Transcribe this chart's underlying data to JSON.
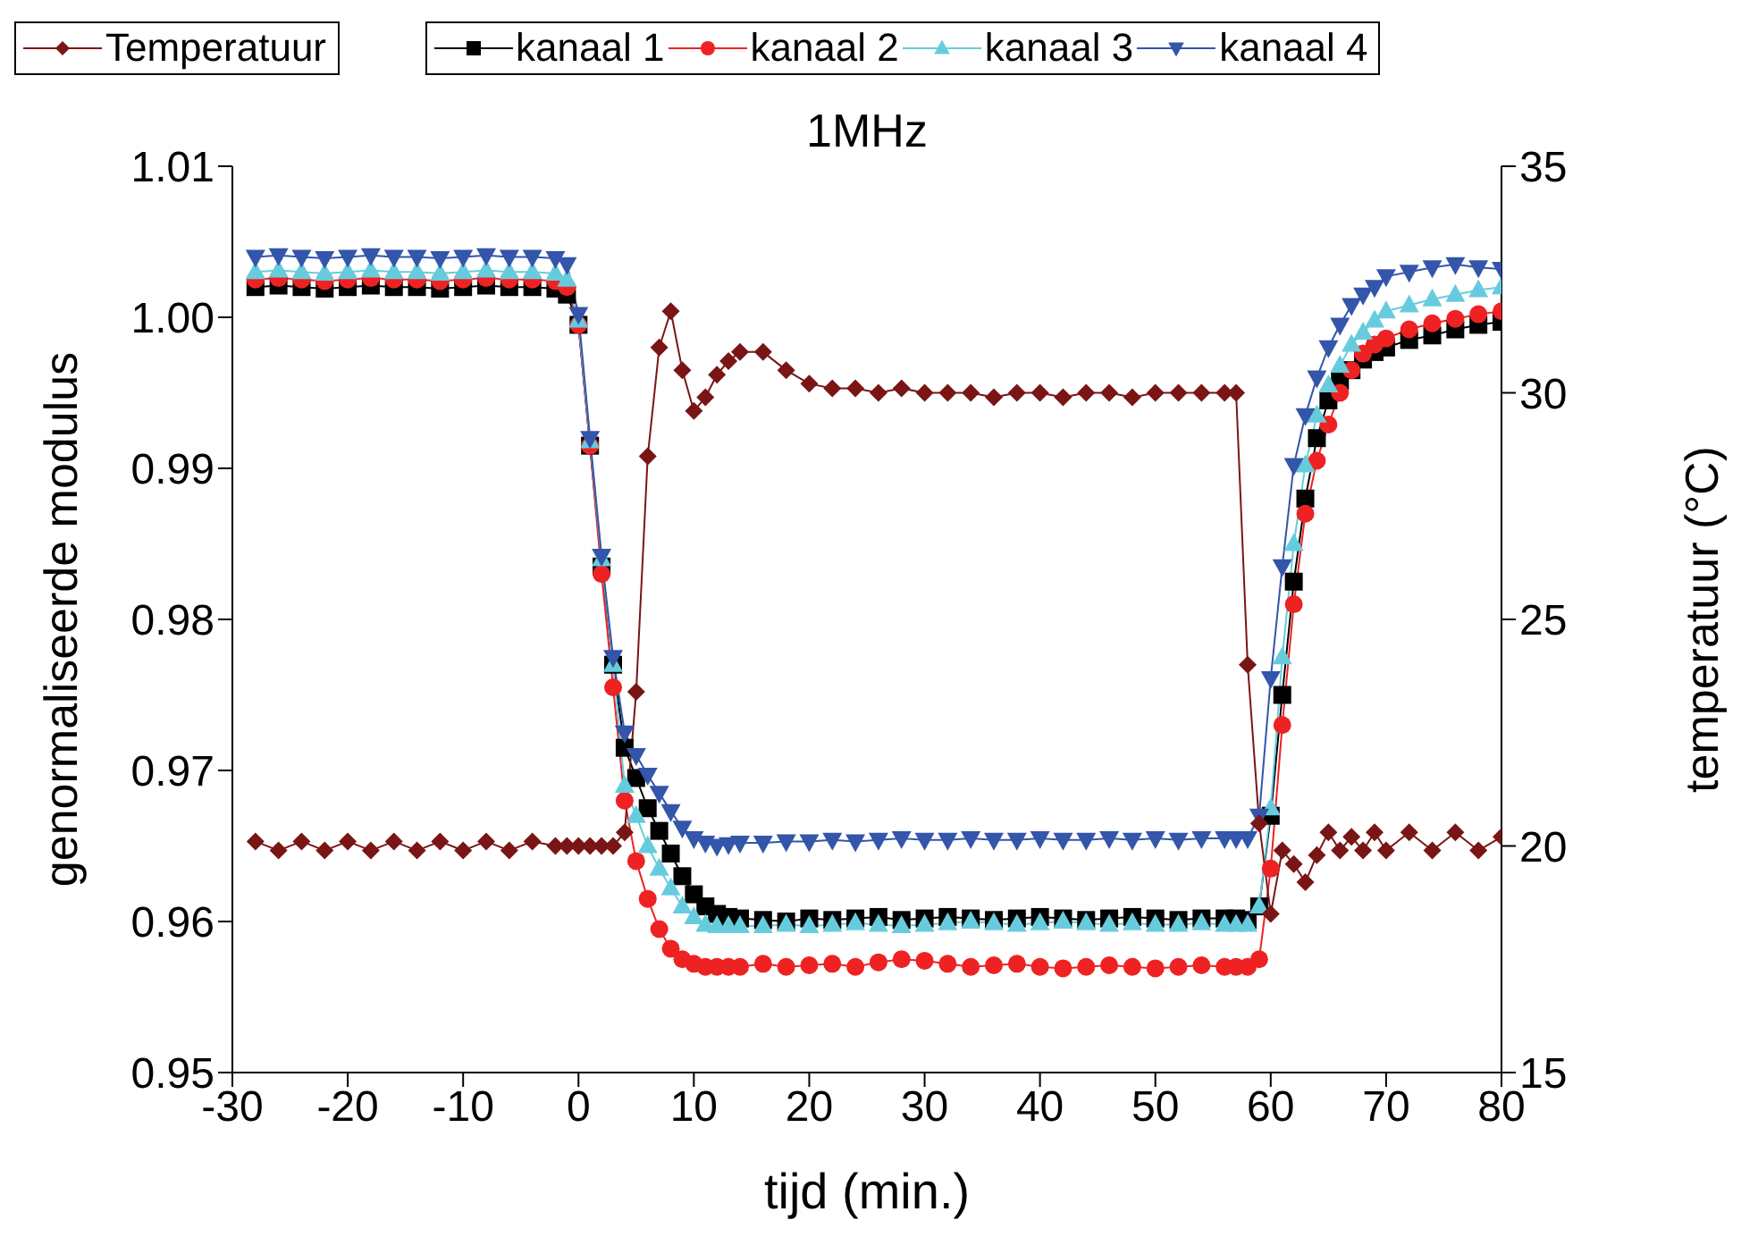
{
  "chart_data": {
    "type": "line",
    "title": "1MHz",
    "xlabel": "tijd (min.)",
    "ylabel": "genormaliseerde modulus",
    "y2label": "temperatuur (°C)",
    "x": [
      -28,
      -26,
      -24,
      -22,
      -20,
      -18,
      -16,
      -14,
      -12,
      -10,
      -8,
      -6,
      -4,
      -2,
      -1,
      0,
      1,
      2,
      3,
      4,
      5,
      6,
      7,
      8,
      9,
      10,
      11,
      12,
      13,
      14,
      16,
      18,
      20,
      22,
      24,
      26,
      28,
      30,
      32,
      34,
      36,
      38,
      40,
      42,
      44,
      46,
      48,
      50,
      52,
      54,
      56,
      57,
      58,
      59,
      60,
      61,
      62,
      63,
      64,
      65,
      66,
      67,
      68,
      69,
      70,
      72,
      74,
      76,
      78,
      80
    ],
    "xlim": [
      -30,
      80
    ],
    "xticks": [
      -30,
      -20,
      -10,
      0,
      10,
      20,
      30,
      40,
      50,
      60,
      70,
      80
    ],
    "ylim": [
      0.95,
      1.01
    ],
    "yticks": [
      0.95,
      0.96,
      0.97,
      0.98,
      0.99,
      {
        "value": 1,
        "label": "1.00"
      },
      1.01
    ],
    "y2lim": [
      15,
      35
    ],
    "y2ticks": [
      15,
      20,
      25,
      30,
      35
    ],
    "legend": "top",
    "grid": false,
    "line_style": "solid",
    "series": [
      {
        "name": "Temperatuur",
        "axis": "y2",
        "marker": "diamond",
        "color": "#7a1515",
        "values": [
          20.1,
          19.9,
          20.1,
          19.9,
          20.1,
          19.9,
          20.1,
          19.9,
          20.1,
          19.9,
          20.1,
          19.9,
          20.1,
          20.0,
          20.0,
          20.0,
          20.0,
          20.0,
          20.0,
          20.3,
          23.4,
          28.6,
          31.0,
          31.8,
          30.5,
          29.6,
          29.9,
          30.4,
          30.7,
          30.9,
          30.9,
          30.5,
          30.2,
          30.1,
          30.1,
          30.0,
          30.1,
          30.0,
          30.0,
          30.0,
          29.9,
          30.0,
          30.0,
          29.9,
          30.0,
          30.0,
          29.9,
          30.0,
          30.0,
          30.0,
          30.0,
          30.0,
          24.0,
          20.5,
          18.5,
          19.9,
          19.6,
          19.2,
          19.8,
          20.3,
          19.9,
          20.2,
          19.9,
          20.3,
          19.9,
          20.3,
          19.9,
          20.3,
          19.9,
          20.2
        ]
      },
      {
        "name": "kanaal 1",
        "marker": "square",
        "color": "#000000",
        "values": [
          1.002,
          1.0021,
          1.002,
          1.0019,
          1.002,
          1.0021,
          1.002,
          1.002,
          1.0019,
          1.002,
          1.0021,
          1.002,
          1.002,
          1.0019,
          1.0015,
          0.9995,
          0.9915,
          0.9835,
          0.977,
          0.9715,
          0.9695,
          0.9675,
          0.966,
          0.9645,
          0.963,
          0.9618,
          0.961,
          0.9605,
          0.9603,
          0.9602,
          0.9601,
          0.96,
          0.9602,
          0.9601,
          0.9602,
          0.9603,
          0.9601,
          0.9602,
          0.9603,
          0.9602,
          0.9601,
          0.9602,
          0.9603,
          0.9602,
          0.9601,
          0.9602,
          0.9603,
          0.9602,
          0.9601,
          0.9602,
          0.9602,
          0.9602,
          0.9601,
          0.961,
          0.967,
          0.975,
          0.9825,
          0.988,
          0.992,
          0.9945,
          0.9958,
          0.9965,
          0.9972,
          0.9977,
          0.998,
          0.9985,
          0.9988,
          0.9992,
          0.9995,
          0.9997
        ]
      },
      {
        "name": "kanaal 2",
        "marker": "circle",
        "color": "#ee2222",
        "values": [
          1.0025,
          1.0026,
          1.0025,
          1.0024,
          1.0025,
          1.0026,
          1.0025,
          1.0025,
          1.0024,
          1.0025,
          1.0026,
          1.0025,
          1.0025,
          1.0024,
          1.002,
          0.9995,
          0.9915,
          0.983,
          0.9755,
          0.968,
          0.964,
          0.9615,
          0.9595,
          0.9582,
          0.9575,
          0.9572,
          0.957,
          0.957,
          0.957,
          0.957,
          0.9572,
          0.957,
          0.9571,
          0.9572,
          0.957,
          0.9573,
          0.9575,
          0.9574,
          0.9572,
          0.957,
          0.9571,
          0.9572,
          0.957,
          0.9569,
          0.957,
          0.9571,
          0.957,
          0.9569,
          0.957,
          0.9571,
          0.957,
          0.957,
          0.957,
          0.9575,
          0.9635,
          0.973,
          0.981,
          0.987,
          0.9905,
          0.9929,
          0.995,
          0.9965,
          0.9976,
          0.9982,
          0.9986,
          0.9992,
          0.9996,
          0.9999,
          1.0002,
          1.0004
        ]
      },
      {
        "name": "kanaal 3",
        "marker": "triangle",
        "color": "#66ccdd",
        "values": [
          1.003,
          1.0031,
          1.003,
          1.0029,
          1.003,
          1.0031,
          1.003,
          1.003,
          1.0029,
          1.003,
          1.0031,
          1.003,
          1.003,
          1.0029,
          1.0025,
          0.9998,
          0.9918,
          0.984,
          0.977,
          0.969,
          0.967,
          0.965,
          0.9635,
          0.9622,
          0.961,
          0.9603,
          0.9598,
          0.9597,
          0.9597,
          0.9597,
          0.9597,
          0.9598,
          0.9597,
          0.9598,
          0.9599,
          0.9598,
          0.9597,
          0.9598,
          0.9599,
          0.96,
          0.9599,
          0.9598,
          0.9599,
          0.96,
          0.9599,
          0.9598,
          0.9599,
          0.9598,
          0.9598,
          0.9599,
          0.9598,
          0.9598,
          0.9598,
          0.961,
          0.9675,
          0.9775,
          0.985,
          0.9902,
          0.9935,
          0.9955,
          0.9968,
          0.9982,
          0.999,
          0.9998,
          1.0004,
          1.0008,
          1.0012,
          1.0015,
          1.0018,
          1.002
        ]
      },
      {
        "name": "kanaal 4",
        "marker": "triangle-down",
        "color": "#3355aa",
        "values": [
          1.004,
          1.0041,
          1.004,
          1.0039,
          1.004,
          1.0041,
          1.004,
          1.004,
          1.0039,
          1.004,
          1.0041,
          1.004,
          1.004,
          1.0039,
          1.0035,
          1.0002,
          0.992,
          0.9842,
          0.9775,
          0.9725,
          0.971,
          0.9697,
          0.9685,
          0.9673,
          0.9662,
          0.9655,
          0.9652,
          0.965,
          0.9651,
          0.9652,
          0.9652,
          0.9653,
          0.9653,
          0.9654,
          0.9653,
          0.9654,
          0.9655,
          0.9654,
          0.9654,
          0.9655,
          0.9654,
          0.9654,
          0.9655,
          0.9654,
          0.9654,
          0.9655,
          0.9654,
          0.9655,
          0.9654,
          0.9655,
          0.9655,
          0.9655,
          0.9655,
          0.967,
          0.9761,
          0.9835,
          0.9902,
          0.9935,
          0.996,
          0.998,
          0.9995,
          1.0008,
          1.0015,
          1.002,
          1.0027,
          1.003,
          1.0033,
          1.0035,
          1.0033,
          1.0032
        ]
      }
    ]
  }
}
